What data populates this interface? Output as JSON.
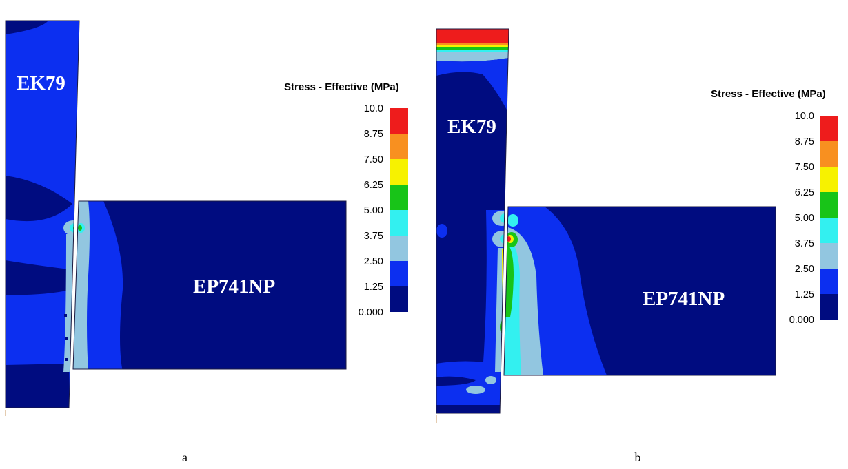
{
  "panels": [
    {
      "id": "a",
      "caption": "a",
      "upper_material": "EK79",
      "lower_material": "EP741NP",
      "legend": {
        "title": "Stress - Effective (MPa)",
        "ticks": [
          "10.0",
          "8.75",
          "7.50",
          "6.25",
          "5.00",
          "3.75",
          "2.50",
          "1.25",
          "0.000"
        ]
      }
    },
    {
      "id": "b",
      "caption": "b",
      "upper_material": "EK79",
      "lower_material": "EP741NP",
      "legend": {
        "title": "Stress - Effective (MPa)",
        "ticks": [
          "10.0",
          "8.75",
          "7.50",
          "6.25",
          "5.00",
          "3.75",
          "2.50",
          "1.25",
          "0.000"
        ]
      }
    }
  ],
  "colors": {
    "scale_top_to_bottom": [
      "#ee1c1c",
      "#f89020",
      "#f7f200",
      "#18c418",
      "#33f0f0",
      "#92c6e0",
      "#0c2ff0",
      "#000c80"
    ],
    "band_bottom": "#000c80",
    "band_low": "#0c2ff0",
    "band_mid": "#92c6e0",
    "band_cyan": "#33f0f0",
    "band_green": "#18c418",
    "band_yellow": "#f7f200",
    "band_orange": "#f89020",
    "band_red": "#ee1c1c"
  }
}
